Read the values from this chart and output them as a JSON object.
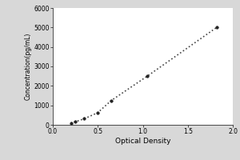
{
  "x_data": [
    0.2,
    0.25,
    0.35,
    0.5,
    0.65,
    1.05,
    1.82
  ],
  "y_data": [
    78,
    156,
    312,
    625,
    1250,
    2500,
    5000
  ],
  "xlabel": "Optical Density",
  "ylabel": "Concentration(pg/mL)",
  "xlim": [
    0,
    2
  ],
  "ylim": [
    0,
    6000
  ],
  "xticks": [
    0,
    0.5,
    1,
    1.5,
    2
  ],
  "yticks": [
    0,
    1000,
    2000,
    3000,
    4000,
    5000,
    6000
  ],
  "line_color": "#444444",
  "marker_color": "#222222",
  "marker": "o",
  "marker_size": 2.5,
  "line_style": ":",
  "line_width": 1.2,
  "bg_color": "#d8d8d8",
  "plot_bg_color": "#ffffff",
  "tick_fontsize": 5.5,
  "label_fontsize": 6.5,
  "ylabel_fontsize": 5.5
}
